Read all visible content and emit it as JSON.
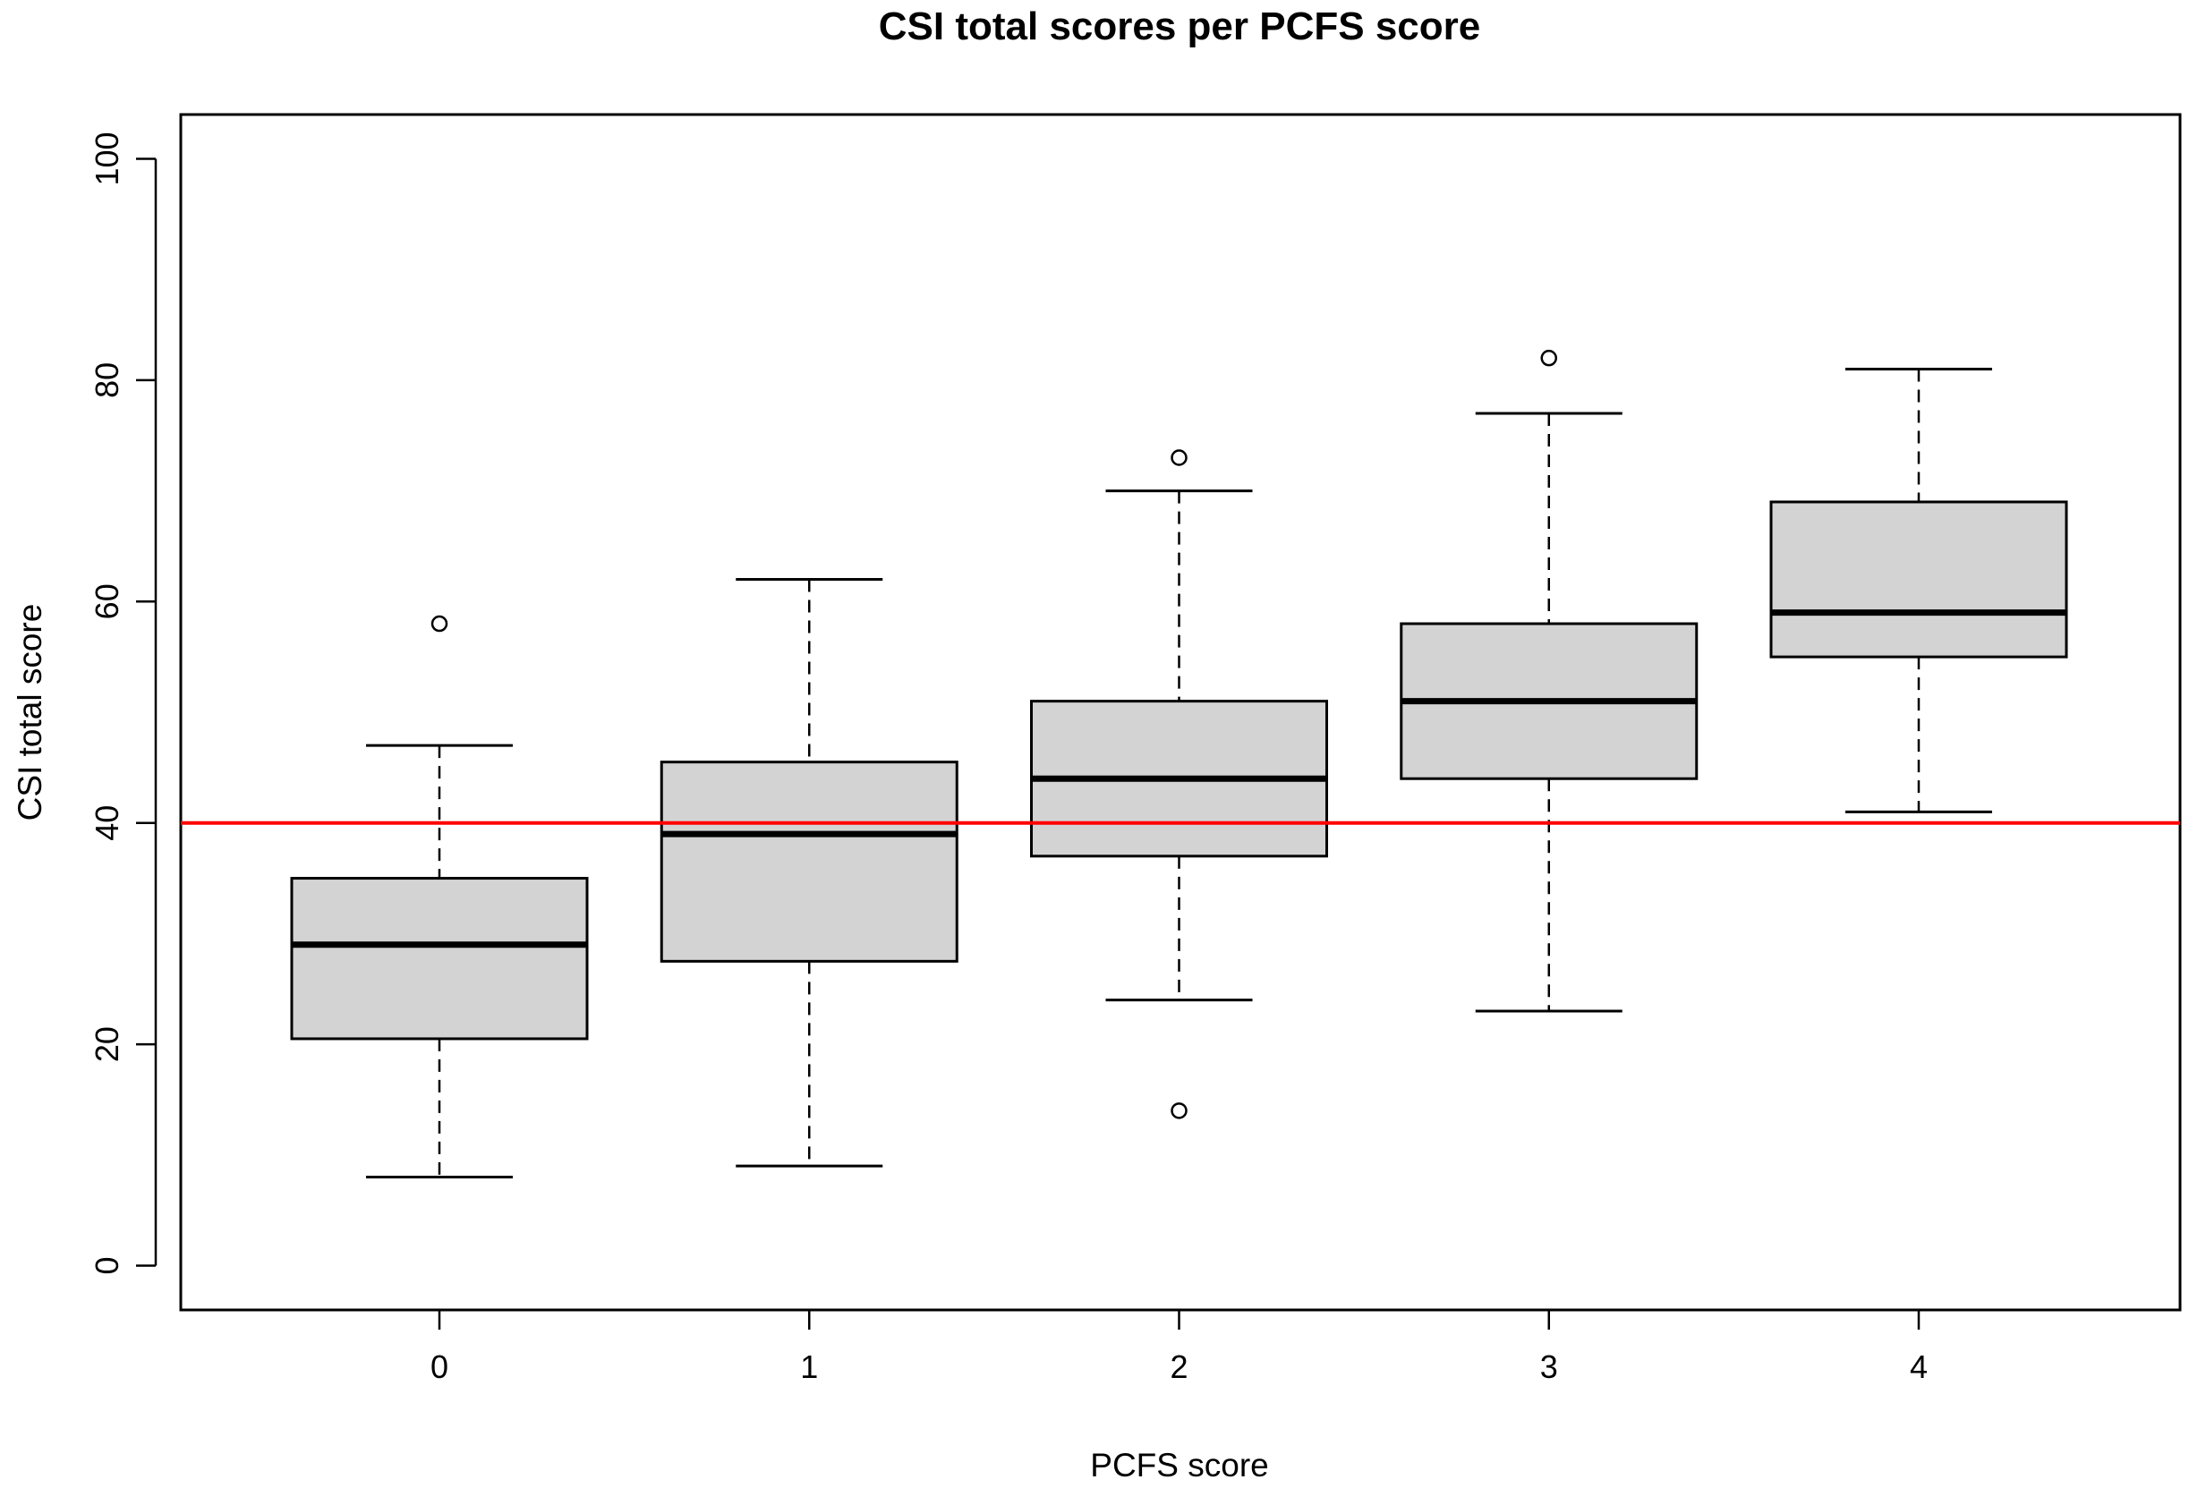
{
  "chart_data": {
    "type": "boxplot",
    "title": "CSI total scores per PCFS score",
    "xlabel": "PCFS score",
    "ylabel": "CSI total score",
    "categories": [
      "0",
      "1",
      "2",
      "3",
      "4"
    ],
    "ylim": [
      -4,
      104
    ],
    "yticks": [
      0,
      20,
      40,
      60,
      80,
      100
    ],
    "grid": false,
    "boxes": [
      {
        "category": "0",
        "whisker_low": 8,
        "q1": 20.5,
        "median": 29,
        "q3": 35,
        "whisker_high": 47,
        "outliers": [
          58
        ]
      },
      {
        "category": "1",
        "whisker_low": 9,
        "q1": 27.5,
        "median": 39,
        "q3": 45.5,
        "whisker_high": 62,
        "outliers": []
      },
      {
        "category": "2",
        "whisker_low": 24,
        "q1": 37,
        "median": 44,
        "q3": 51,
        "whisker_high": 70,
        "outliers": [
          73,
          14
        ]
      },
      {
        "category": "3",
        "whisker_low": 23,
        "q1": 44,
        "median": 51,
        "q3": 58,
        "whisker_high": 77,
        "outliers": [
          82
        ]
      },
      {
        "category": "4",
        "whisker_low": 41,
        "q1": 55,
        "median": 59,
        "q3": 69,
        "whisker_high": 81,
        "outliers": []
      }
    ],
    "reference_line": {
      "y": 40,
      "orientation": "horizontal"
    },
    "colors": {
      "box_fill": "#d3d3d3",
      "box_stroke": "#000000",
      "reference_line": "#ff0000",
      "median": "#000000"
    }
  }
}
